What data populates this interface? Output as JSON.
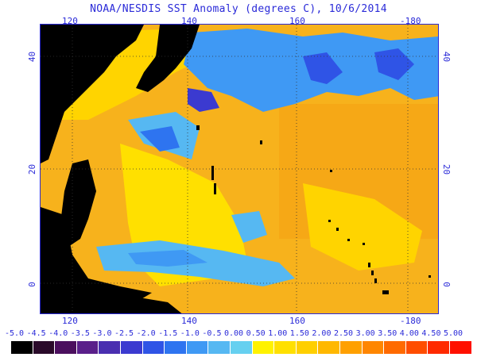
{
  "title": "NOAA/NESDIS SST Anomaly (degrees C), 10/6/2014",
  "longitude_ticks": [
    "120",
    "140",
    "160",
    "-180"
  ],
  "latitude_ticks": [
    "40",
    "20",
    "0"
  ],
  "colorbar": {
    "labels": [
      "-5.0",
      "-4.5",
      "-4.0",
      "-3.5",
      "-3.0",
      "-2.5",
      "-2.0",
      "-1.5",
      "-1.0",
      "-0.5",
      "0.00",
      "0.50",
      "1.00",
      "1.50",
      "2.00",
      "2.50",
      "3.00",
      "3.50",
      "4.00",
      "4.50",
      "5.00"
    ],
    "colors": [
      "#000000",
      "#2a0a2a",
      "#4b0f5e",
      "#5a1f8a",
      "#4a2fb0",
      "#3b3ad0",
      "#2f54e6",
      "#2e74f0",
      "#3f99f4",
      "#56b8f2",
      "#66d0f0",
      "#fff200",
      "#ffe000",
      "#ffcf00",
      "#ffb800",
      "#ffa000",
      "#ff8600",
      "#ff6a00",
      "#ff4d00",
      "#ff2a00",
      "#ff1000"
    ]
  },
  "colors": {
    "land": "#000000",
    "warm_dominant": "#f7b21c",
    "yellow": "#ffe000",
    "cool": "#3f99f4",
    "cold": "#2e3ad0",
    "axis_text": "#2a2ad8"
  }
}
